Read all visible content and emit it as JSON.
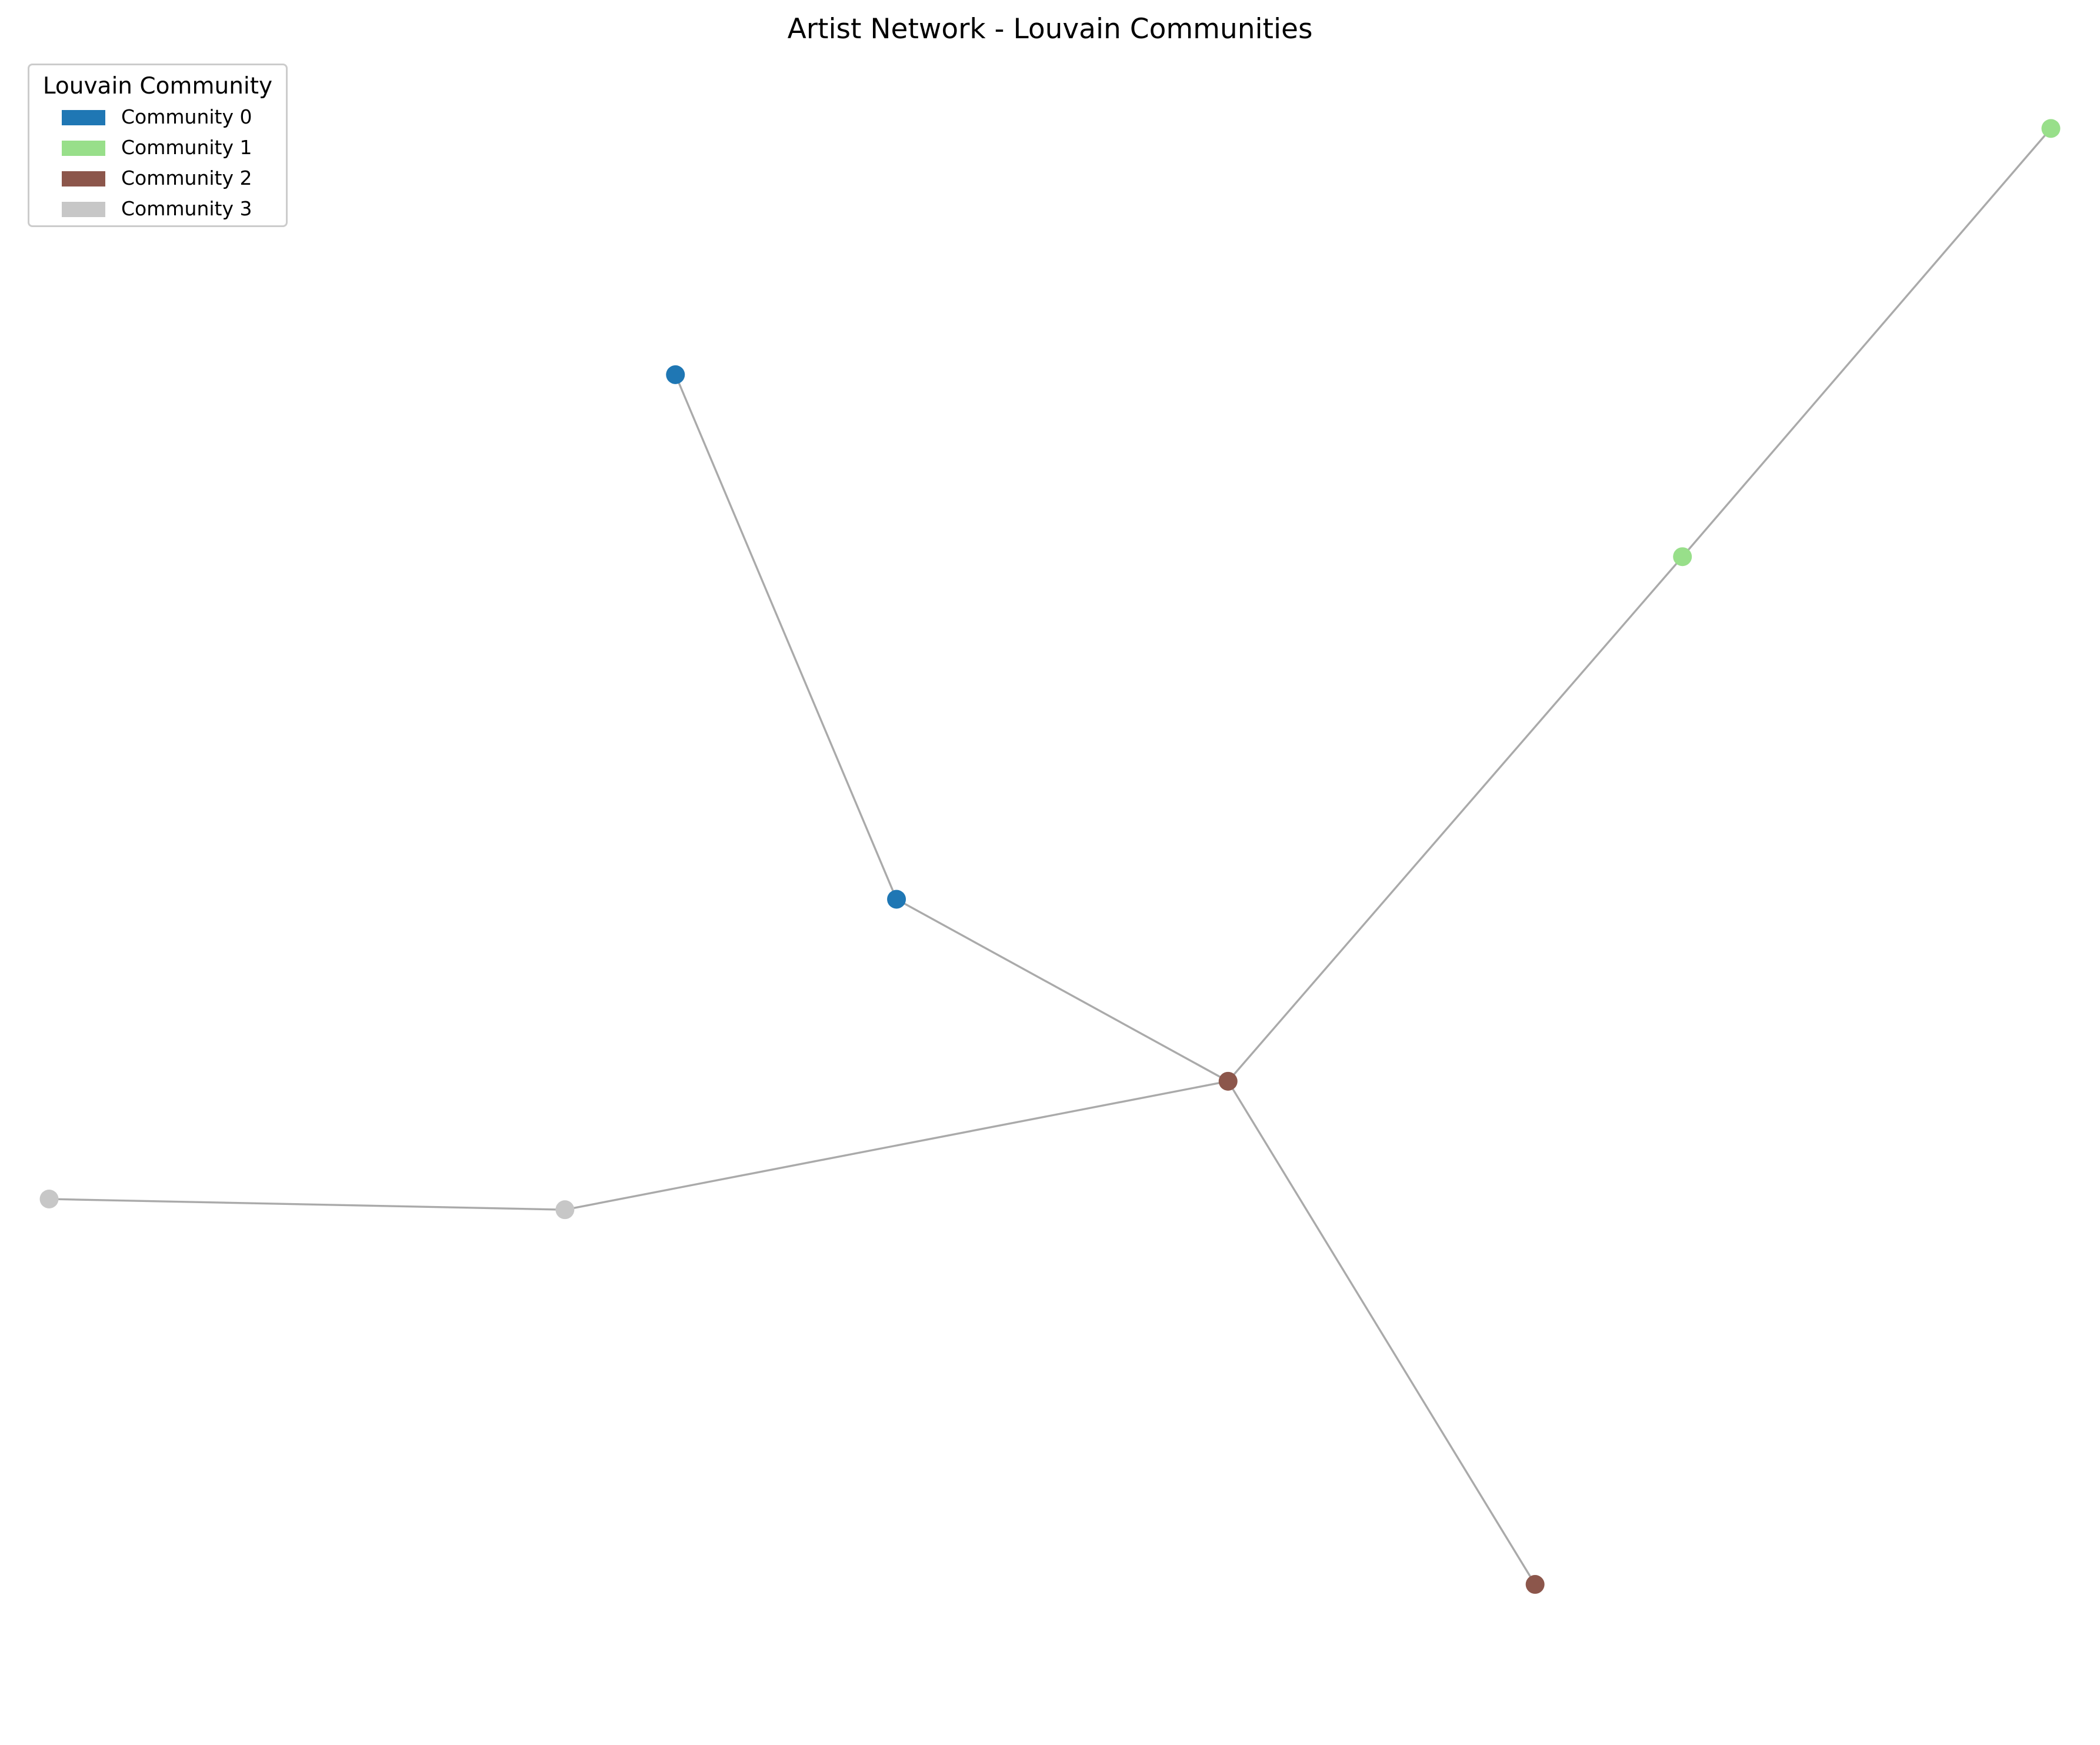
{
  "chart_data": {
    "type": "network",
    "title": "Artist Network - Louvain Communities",
    "legend": {
      "title": "Louvain Community",
      "placement": "upper-left",
      "entries": [
        {
          "label": "Community 0",
          "color": "#1f77b4"
        },
        {
          "label": "Community 1",
          "color": "#98df8a"
        },
        {
          "label": "Community 2",
          "color": "#8c564b"
        },
        {
          "label": "Community 3",
          "color": "#c7c7c7"
        }
      ]
    },
    "edge_color": "#aaaaaa",
    "nodes": [
      {
        "id": "n1",
        "community": 0,
        "pos": [
          -0.45,
          0.62
        ]
      },
      {
        "id": "n2",
        "community": 0,
        "pos": [
          -0.27,
          0.13
        ]
      },
      {
        "id": "n3",
        "community": 1,
        "pos": [
          0.67,
          0.85
        ]
      },
      {
        "id": "n4",
        "community": 1,
        "pos": [
          0.37,
          0.45
        ]
      },
      {
        "id": "n5",
        "community": 2,
        "pos": [
          0.0,
          -0.04
        ]
      },
      {
        "id": "n6",
        "community": 2,
        "pos": [
          0.25,
          -0.51
        ]
      },
      {
        "id": "n7",
        "community": 3,
        "pos": [
          -0.54,
          -0.16
        ]
      },
      {
        "id": "n8",
        "community": 3,
        "pos": [
          -0.96,
          -0.15
        ]
      }
    ],
    "edges": [
      [
        "n1",
        "n2"
      ],
      [
        "n2",
        "n5"
      ],
      [
        "n3",
        "n4"
      ],
      [
        "n4",
        "n5"
      ],
      [
        "n5",
        "n6"
      ],
      [
        "n5",
        "n7"
      ],
      [
        "n7",
        "n8"
      ]
    ],
    "xlim": [
      -1.0,
      0.71
    ],
    "ylim": [
      -0.66,
      0.97
    ]
  }
}
